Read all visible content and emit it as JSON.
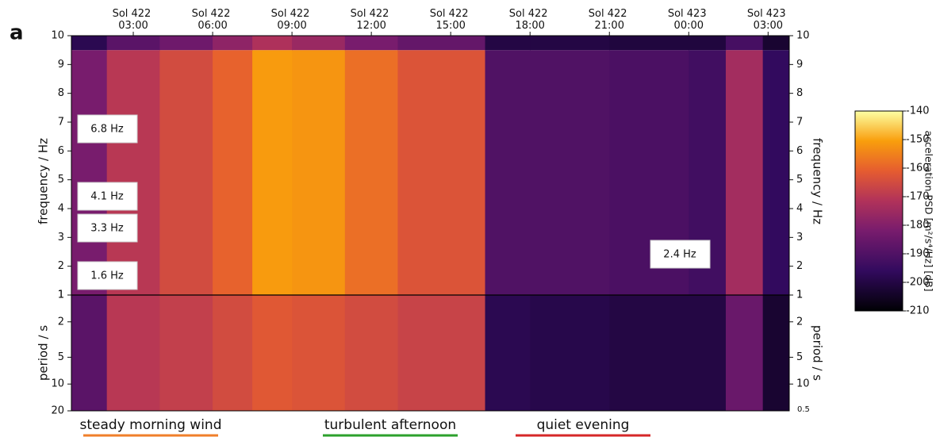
{
  "chart_data": {
    "type": "spectrogram",
    "panel_label": "a",
    "xlim": [
      0.66,
      27.8
    ],
    "xticks": [
      {
        "value": 3,
        "label": "Sol 422 03:00"
      },
      {
        "value": 6,
        "label": "Sol 422 06:00"
      },
      {
        "value": 9,
        "label": "Sol 422 09:00"
      },
      {
        "value": 12,
        "label": "Sol 422 12:00"
      },
      {
        "value": 15,
        "label": "Sol 422 15:00"
      },
      {
        "value": 18,
        "label": "Sol 422 18:00"
      },
      {
        "value": 21,
        "label": "Sol 422 21:00"
      },
      {
        "value": 24,
        "label": "Sol 423 00:00"
      },
      {
        "value": 27,
        "label": "Sol 423 03:00"
      }
    ],
    "ylabel": "frequency / Hz",
    "ylim": [
      1,
      10
    ],
    "yticks": [
      1,
      2,
      3,
      4,
      5,
      6,
      7,
      8,
      9,
      10
    ],
    "y_period_label": "period / s",
    "y_period_lim": [
      1,
      20
    ],
    "y_period_ticks": [
      1,
      2,
      5,
      10,
      20
    ],
    "y_period_ticks_right": [
      1,
      2,
      5,
      10
    ],
    "bottom_right_label": "0.5",
    "log_scale_period": true,
    "colorbar_label": "acceleration PSD [m²/s⁴/Hz] [dB]",
    "clim": [
      -210,
      -140
    ],
    "cticks": [
      -140,
      -150,
      -160,
      -170,
      -180,
      -190,
      -200,
      -210
    ],
    "time_edges": [
      0.66,
      2,
      4,
      6,
      7.5,
      9,
      11,
      13,
      16.3,
      18,
      21,
      24,
      25.4,
      26.8,
      27.8
    ],
    "freq_edges": [
      1,
      9.5,
      10
    ],
    "freq_values": [
      [
        -182,
        -170,
        -165,
        -160,
        -151,
        -152,
        -158,
        -163,
        -190,
        -190,
        -191,
        -193,
        -174,
        -196
      ],
      [
        -198,
        -188,
        -184,
        -178,
        -172,
        -176,
        -182,
        -186,
        -200,
        -200,
        -201,
        -201,
        -192,
        -203
      ]
    ],
    "period_values": [
      -188,
      -170,
      -168,
      -165,
      -162,
      -163,
      -165,
      -167,
      -198,
      -199,
      -200,
      -200,
      -185,
      -203
    ],
    "annotations": [
      {
        "text": "6.8 Hz"
      },
      {
        "text": "4.1 Hz"
      },
      {
        "text": "3.3 Hz"
      },
      {
        "text": "1.6 Hz"
      },
      {
        "text": "2.4 Hz"
      }
    ],
    "regimes": [
      {
        "text": "steady morning wind",
        "color": "#f07f2a"
      },
      {
        "text": "turbulent afternoon",
        "color": "#2ca02c"
      },
      {
        "text": "quiet evening",
        "color": "#d62728"
      }
    ]
  }
}
